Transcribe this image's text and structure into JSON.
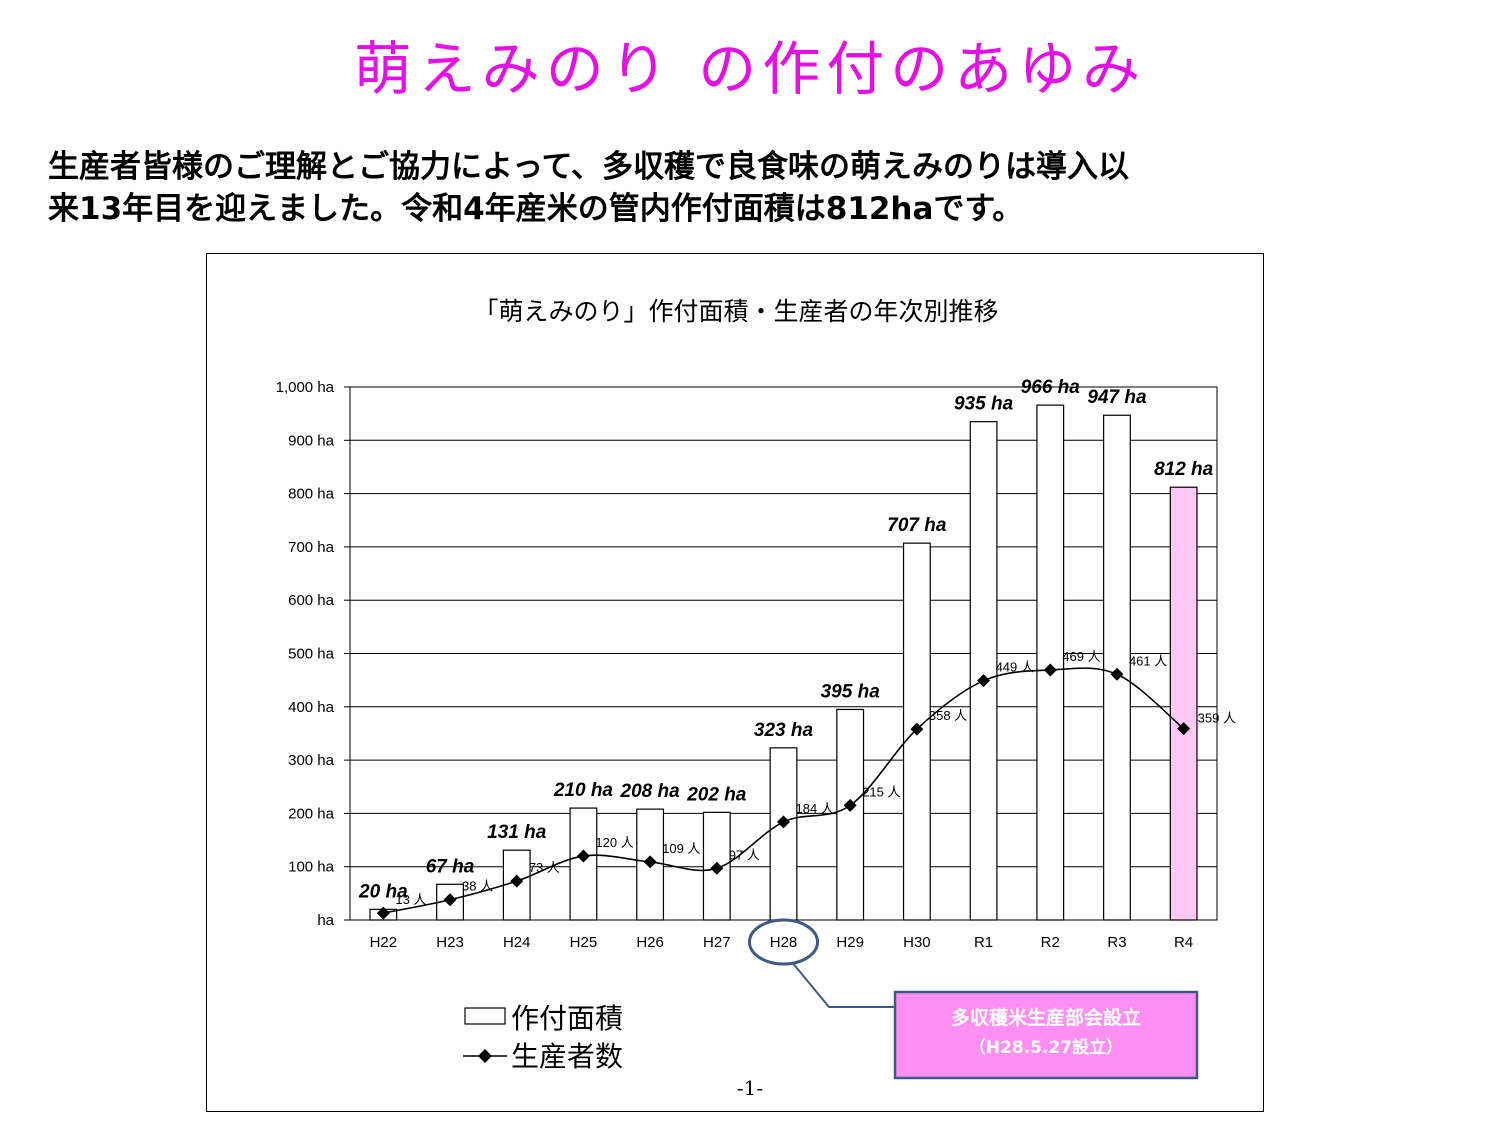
{
  "page": {
    "title": "萌えみのり の作付のあゆみ",
    "intro_line1": "生産者皆様のご理解とご協力によって、多収穫で良食味の萌えみのりは導入以",
    "intro_line2": "来13年目を迎えました。令和4年産米の管内作付面積は812haです。",
    "page_number": "-1-"
  },
  "chart_data": {
    "type": "bar",
    "title": "「萌えみのり」作付面積・生産者の年次別推移",
    "categories": [
      "H22",
      "H23",
      "H24",
      "H25",
      "H26",
      "H27",
      "H28",
      "H29",
      "H30",
      "R1",
      "R2",
      "R3",
      "R4"
    ],
    "series": [
      {
        "name": "作付面積",
        "type": "bar",
        "values": [
          20,
          67,
          131,
          210,
          208,
          202,
          323,
          395,
          707,
          935,
          966,
          947,
          812
        ],
        "labels": [
          "20 ha",
          "67 ha",
          "131 ha",
          "210 ha",
          "208 ha",
          "202 ha",
          "323 ha",
          "395 ha",
          "707 ha",
          "935 ha",
          "966 ha",
          "947 ha",
          "812 ha"
        ],
        "highlight_index": 12,
        "highlight_color": "#ffc8f5",
        "fill": "#ffffff"
      },
      {
        "name": "生産者数",
        "type": "line",
        "values": [
          13,
          38,
          73,
          120,
          109,
          97,
          184,
          215,
          358,
          449,
          469,
          461,
          359
        ],
        "labels": [
          "13 人",
          "38 人",
          "73 人",
          "120 人",
          "109 人",
          "97 人",
          "184 人",
          "215 人",
          "358 人",
          "449 人",
          "469 人",
          "461 人",
          "359 人"
        ]
      }
    ],
    "ylim": [
      0,
      1000
    ],
    "yticks": [
      0,
      100,
      200,
      300,
      400,
      500,
      600,
      700,
      800,
      900,
      1000
    ],
    "ytick_labels": [
      "ha",
      "100 ha",
      "200 ha",
      "300 ha",
      "400 ha",
      "500 ha",
      "600 ha",
      "700 ha",
      "800 ha",
      "900 ha",
      "1,000 ha"
    ],
    "grid": true,
    "legend_position": "bottom-left",
    "annotation": {
      "target_category": "H28",
      "line1": "多収穫米生産部会設立",
      "line2": "（H28.5.27設立）",
      "box_color": "#ff8ff2",
      "border_color": "#3d5a85"
    }
  }
}
